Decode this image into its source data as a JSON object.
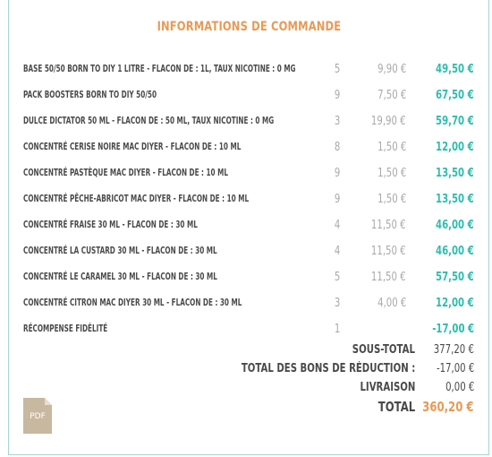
{
  "title": "INFORMATIONS DE COMMANDE",
  "items": [
    {
      "name": "BASE 50/50 BORN TO DIY 1 LITRE - FLACON DE : 1L, TAUX NICOTINE : 0 MG",
      "qty": "5",
      "price": "9,90 €",
      "total": "49,50 €"
    },
    {
      "name": "PACK BOOSTERS BORN TO DIY 50/50",
      "qty": "9",
      "price": "7,50 €",
      "total": "67,50 €"
    },
    {
      "name": "DULCE DICTATOR 50 ML - FLACON DE : 50 ML, TAUX NICOTINE : 0 MG",
      "qty": "3",
      "price": "19,90 €",
      "total": "59,70 €"
    },
    {
      "name": "CONCENTRÉ CERISE NOIRE MAC DIYER - FLACON DE : 10 ML",
      "qty": "8",
      "price": "1,50 €",
      "total": "12,00 €"
    },
    {
      "name": "CONCENTRÉ PASTÈQUE MAC DIYER - FLACON DE : 10 ML",
      "qty": "9",
      "price": "1,50 €",
      "total": "13,50 €"
    },
    {
      "name": "CONCENTRÉ PÊCHE-ABRICOT MAC DIYER - FLACON DE : 10 ML",
      "qty": "9",
      "price": "1,50 €",
      "total": "13,50 €"
    },
    {
      "name": "CONCENTRÉ FRAISE 30 ML - FLACON DE : 30 ML",
      "qty": "4",
      "price": "11,50 €",
      "total": "46,00 €"
    },
    {
      "name": "CONCENTRÉ LA CUSTARD 30 ML - FLACON DE : 30 ML",
      "qty": "4",
      "price": "11,50 €",
      "total": "46,00 €"
    },
    {
      "name": "CONCENTRÉ LE CARAMEL 30 ML - FLACON DE : 30 ML",
      "qty": "5",
      "price": "11,50 €",
      "total": "57,50 €"
    },
    {
      "name": "CONCENTRÉ CITRON MAC DIYER 30 ML - FLACON DE : 30 ML",
      "qty": "3",
      "price": "4,00 €",
      "total": "12,00 €"
    },
    {
      "name": "RÉCOMPENSE FIDÉLITÉ",
      "qty": "1",
      "price": "",
      "total": "-17,00 €"
    }
  ],
  "summary": {
    "subtotal_label": "SOUS-TOTAL",
    "subtotal_value": "377,20 €",
    "discount_label": "TOTAL DES BONS DE RÉDUCTION :",
    "discount_value": "-17,00 €",
    "shipping_label": "LIVRAISON",
    "shipping_value": "0,00 €",
    "total_label": "TOTAL",
    "total_value": "360,20 €"
  },
  "pdf": {
    "label": "PDF",
    "icon": "pdf-file-icon"
  },
  "colors": {
    "title": "#e79a55",
    "line_total": "#2fbcae",
    "grand_total": "#e79a55",
    "text": "#4a4a4a",
    "muted": "#a9a9a9",
    "border": "#9fd8cf",
    "pdf_icon": "#c8b8a0"
  }
}
